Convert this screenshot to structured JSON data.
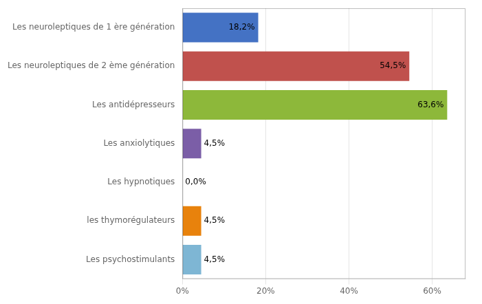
{
  "chart_data": {
    "type": "bar",
    "orientation": "horizontal",
    "categories": [
      "Les neuroleptiques de 1 ère génération",
      "Les neuroleptiques de 2 ème génération",
      "Les antidépresseurs",
      "Les anxiolytiques",
      "Les hypnotiques",
      "les thymorégulateurs",
      "Les psychostimulants"
    ],
    "values": [
      18.2,
      54.5,
      63.6,
      4.5,
      0.0,
      4.5,
      4.5
    ],
    "value_labels": [
      "18,2%",
      "54,5%",
      "63,6%",
      "4,5%",
      "0,0%",
      "4,5%",
      "4,5%"
    ],
    "colors": [
      "#4472c4",
      "#c0514d",
      "#8db83a",
      "#7b5ea7",
      "#ffffff",
      "#e8820c",
      "#7eb6d4"
    ],
    "xlim": [
      0,
      68
    ],
    "xticks": [
      {
        "value": 0,
        "label": "0%"
      },
      {
        "value": 20,
        "label": "20%"
      },
      {
        "value": 40,
        "label": "40%"
      },
      {
        "value": 60,
        "label": "60%"
      }
    ],
    "grid": true,
    "data_labels": true
  }
}
